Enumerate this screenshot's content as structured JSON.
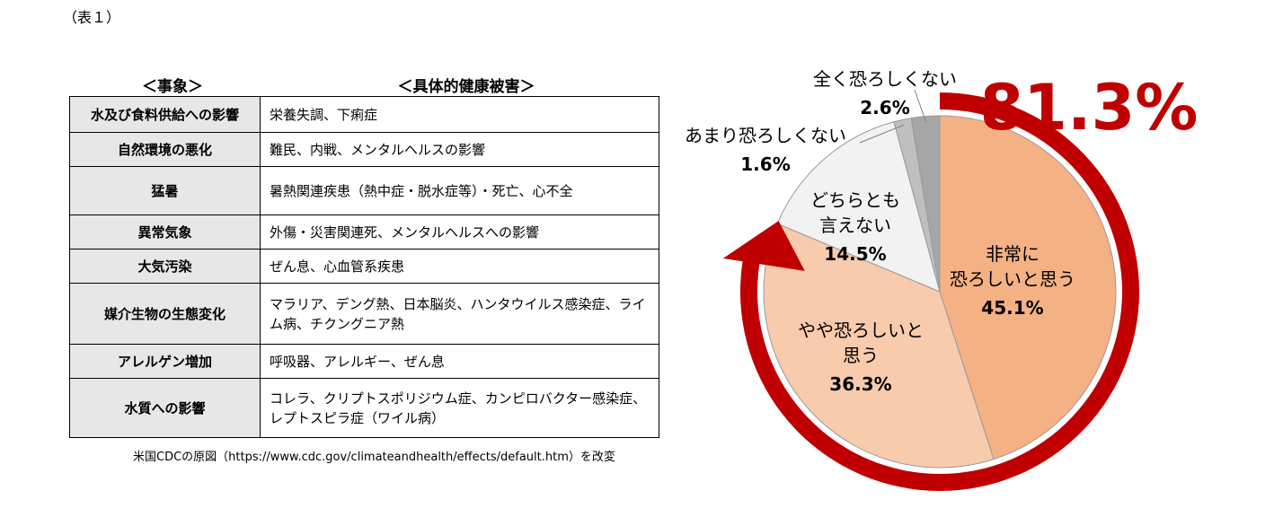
{
  "caption": "（表１）",
  "table": {
    "header_event": "＜事象＞",
    "header_damage": "＜具体的健康被害＞",
    "rows": [
      {
        "event": "水及び食料供給への影響",
        "damage": "栄養失調、下痢症"
      },
      {
        "event": "自然環境の悪化",
        "damage": "難民、内戦、メンタルヘルスの影響"
      },
      {
        "event": "猛暑",
        "damage": "暑熱関連疾患（熱中症・脱水症等）・死亡、心不全"
      },
      {
        "event": "異常気象",
        "damage": "外傷・災害関連死、メンタルヘルスへの影響"
      },
      {
        "event": "大気汚染",
        "damage": "ぜん息、心血管系疾患"
      },
      {
        "event": "媒介生物の生態変化",
        "damage": "マラリア、デング熱、日本脳炎、ハンタウイルス感染症、ライム病、チクングニア熱"
      },
      {
        "event": "アレルゲン増加",
        "damage": "呼吸器、アレルギー、ぜん息"
      },
      {
        "event": "水質への影響",
        "damage": "コレラ、クリプトスポリジウム症、カンピロバクター感染症、レプトスピラ症（ワイル病）"
      }
    ],
    "source": "米国CDCの原図（https://www.cdc.gov/climateandhealth/effects/default.htm）を改変"
  },
  "chart_data": {
    "type": "pie",
    "start": "top",
    "direction": "clockwise",
    "slices": [
      {
        "label_lines": [
          "非常に",
          "恐ろしいと思う"
        ],
        "value": 45.1,
        "value_label": "45.1%",
        "color": "#f4b183"
      },
      {
        "label_lines": [
          "やや恐ろしいと",
          "思う"
        ],
        "value": 36.3,
        "value_label": "36.3%",
        "color": "#f8cbad"
      },
      {
        "label_lines": [
          "どちらとも",
          "言えない"
        ],
        "value": 14.5,
        "value_label": "14.5%",
        "color": "#f2f2f2"
      },
      {
        "label_lines": [
          "あまり恐ろしくない"
        ],
        "value": 1.6,
        "value_label": "1.6%",
        "color": "#bfbfbf"
      },
      {
        "label_lines": [
          "全く恐ろしくない"
        ],
        "value": 2.6,
        "value_label": "2.6%",
        "color": "#a6a6a6"
      }
    ],
    "highlight_total": "81.3%",
    "highlight_color": "#c00000"
  }
}
